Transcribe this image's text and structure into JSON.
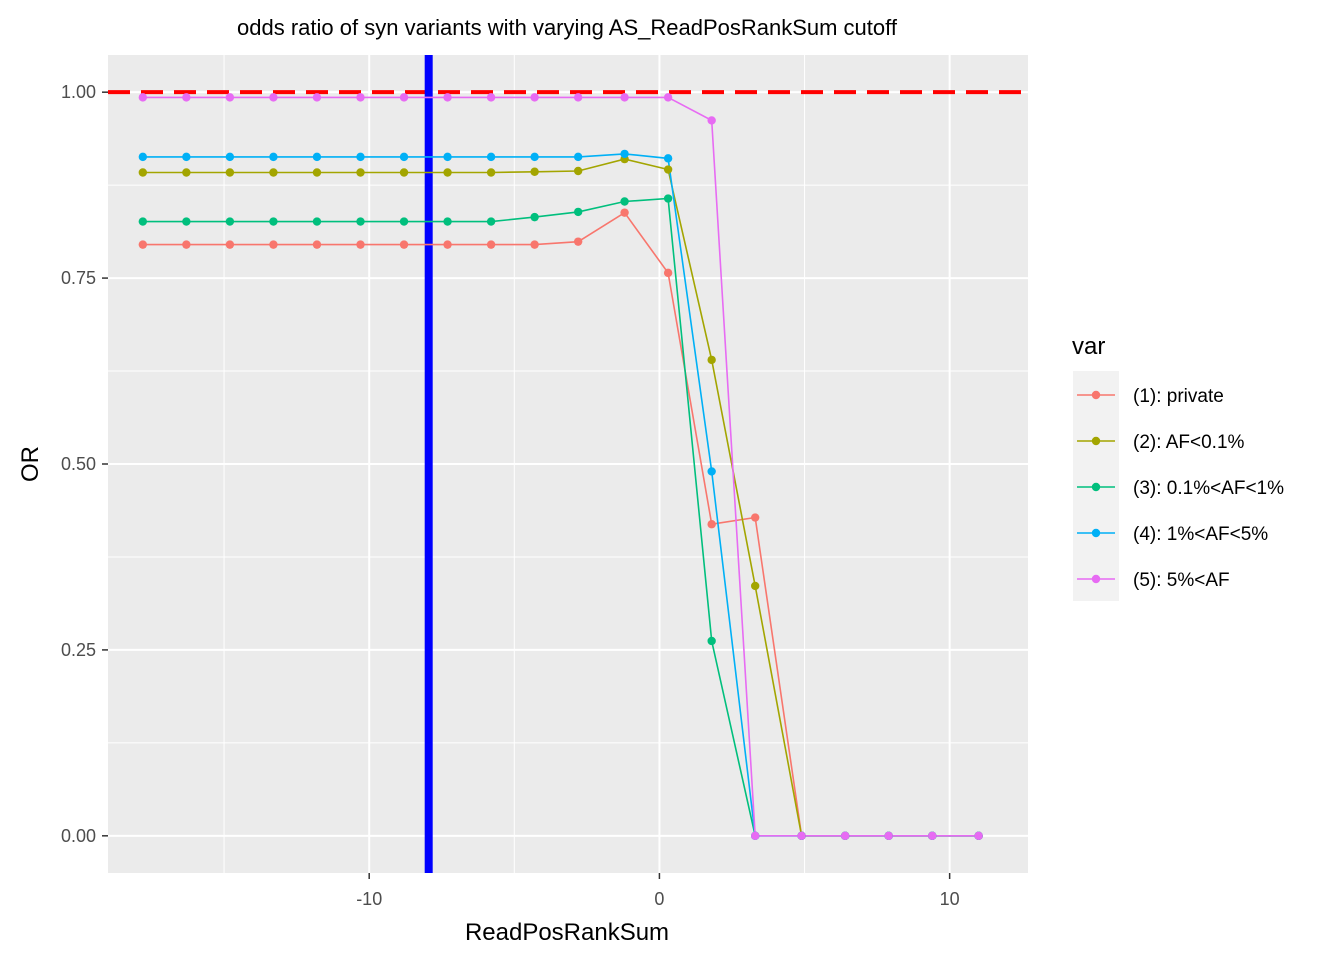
{
  "chart_data": {
    "type": "line",
    "title": "odds ratio of syn variants with varying AS_ReadPosRankSum cutoff",
    "xlabel": "ReadPosRankSum",
    "ylabel": "OR",
    "xlim": [
      -19,
      12.7
    ],
    "ylim": [
      -0.05,
      1.05
    ],
    "x_ticks": [
      -10,
      0,
      10
    ],
    "x_tick_labels": [
      "-10",
      "0",
      "10"
    ],
    "y_ticks": [
      0,
      0.25,
      0.5,
      0.75,
      1.0
    ],
    "y_tick_labels": [
      "0.00",
      "0.25",
      "0.50",
      "0.75",
      "1.00"
    ],
    "grid": true,
    "panel_background": "#ebebeb",
    "legend_title": "var",
    "legend_position": "right",
    "x": [
      -17.8,
      -16.3,
      -14.8,
      -13.3,
      -11.8,
      -10.3,
      -8.8,
      -7.3,
      -5.8,
      -4.3,
      -2.8,
      -1.2,
      0.3,
      1.8,
      3.3,
      4.9,
      6.4,
      7.9,
      9.4,
      11.0
    ],
    "series": [
      {
        "name": "(1): private",
        "color": "#F8766D",
        "values": [
          0.795,
          0.795,
          0.795,
          0.795,
          0.795,
          0.795,
          0.795,
          0.795,
          0.795,
          0.795,
          0.799,
          0.838,
          0.757,
          0.419,
          0.428,
          0.0,
          0.0,
          0.0,
          0.0,
          0.0
        ]
      },
      {
        "name": "(2): AF<0.1%",
        "color": "#A3A500",
        "values": [
          0.892,
          0.892,
          0.892,
          0.892,
          0.892,
          0.892,
          0.892,
          0.892,
          0.892,
          0.893,
          0.894,
          0.91,
          0.896,
          0.64,
          0.336,
          0.0,
          0.0,
          0.0,
          0.0,
          0.0
        ]
      },
      {
        "name": "(3): 0.1%<AF<1%",
        "color": "#00BF7D",
        "values": [
          0.826,
          0.826,
          0.826,
          0.826,
          0.826,
          0.826,
          0.826,
          0.826,
          0.826,
          0.832,
          0.839,
          0.853,
          0.857,
          0.262,
          0.0,
          0.0,
          0.0,
          0.0,
          0.0,
          0.0
        ]
      },
      {
        "name": "(4): 1%<AF<5%",
        "color": "#00B0F6",
        "values": [
          0.913,
          0.913,
          0.913,
          0.913,
          0.913,
          0.913,
          0.913,
          0.913,
          0.913,
          0.913,
          0.913,
          0.917,
          0.911,
          0.49,
          0.0,
          0.0,
          0.0,
          0.0,
          0.0,
          0.0
        ]
      },
      {
        "name": "(5): 5%<AF",
        "color": "#E76BF3",
        "values": [
          0.993,
          0.993,
          0.993,
          0.993,
          0.993,
          0.993,
          0.993,
          0.993,
          0.993,
          0.993,
          0.993,
          0.993,
          0.993,
          0.962,
          0.0,
          0.0,
          0.0,
          0.0,
          0.0,
          0.0
        ]
      }
    ],
    "reference_lines": [
      {
        "orientation": "horizontal",
        "value": 1.0,
        "color": "#FF0000",
        "style": "dashed"
      },
      {
        "orientation": "vertical",
        "value": -7.95,
        "color": "#0000FF",
        "style": "solid"
      }
    ]
  }
}
